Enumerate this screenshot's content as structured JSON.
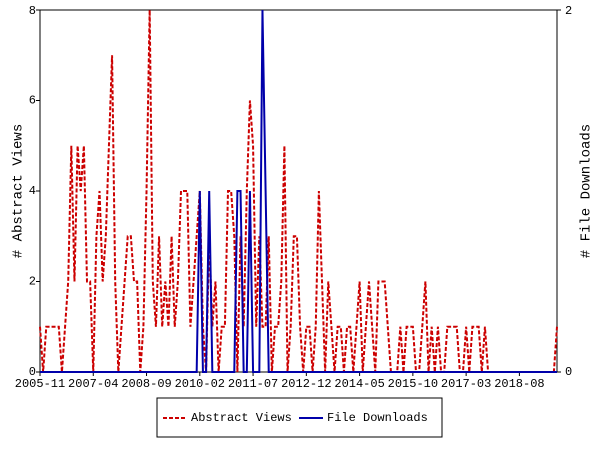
{
  "chart_data": {
    "type": "line",
    "y_label": "# Abstract Views",
    "y2_label": "# File Downloads",
    "categories": [
      "2005-11",
      null,
      null,
      null,
      null,
      null,
      null,
      null,
      null,
      null,
      null,
      null,
      null,
      null,
      null,
      null,
      null,
      "2007-04",
      null,
      null,
      null,
      null,
      null,
      null,
      null,
      null,
      null,
      null,
      null,
      null,
      null,
      null,
      null,
      null,
      "2008-09",
      null,
      null,
      null,
      null,
      null,
      null,
      null,
      null,
      null,
      null,
      null,
      null,
      null,
      null,
      null,
      null,
      "2010-02",
      null,
      null,
      null,
      null,
      null,
      null,
      null,
      null,
      null,
      null,
      null,
      null,
      null,
      null,
      null,
      null,
      "2011-07",
      null,
      null,
      null,
      null,
      null,
      null,
      null,
      null,
      null,
      null,
      null,
      null,
      null,
      null,
      null,
      null,
      "2012-12",
      null,
      null,
      null,
      null,
      null,
      null,
      null,
      null,
      null,
      null,
      null,
      null,
      null,
      null,
      null,
      null,
      "2014-05",
      null,
      null,
      null,
      null,
      null,
      null,
      null,
      null,
      null,
      null,
      null,
      null,
      null,
      null,
      null,
      null,
      "2015-10",
      null,
      null,
      null,
      null,
      null,
      null,
      null,
      null,
      null,
      null,
      null,
      null,
      null,
      null,
      null,
      null,
      "2017-03",
      null,
      null,
      null,
      null,
      null,
      null,
      null,
      null,
      null,
      null,
      null,
      null,
      null,
      null,
      null,
      null,
      "2018-08",
      null,
      null,
      null,
      null,
      null,
      null,
      null,
      null,
      null,
      null,
      null,
      null
    ],
    "series": [
      {
        "name": "Abstract Views",
        "color": "#cc0000",
        "values": [
          1,
          0,
          1,
          1,
          1,
          1,
          1,
          0,
          1,
          2,
          5,
          2,
          5,
          4,
          5,
          2,
          2,
          0,
          3,
          4,
          2,
          3,
          5,
          7,
          2,
          0,
          1,
          2,
          3,
          3,
          2,
          2,
          0,
          1,
          4,
          8,
          2,
          1,
          3,
          1,
          2,
          1,
          3,
          1,
          2,
          4,
          4,
          4,
          1,
          2,
          3,
          4,
          1,
          0,
          3,
          1,
          2,
          0,
          1,
          1,
          4,
          4,
          3,
          0,
          3,
          1,
          4,
          6,
          5,
          1,
          3,
          1,
          1,
          3,
          0,
          1,
          1,
          2,
          5,
          0,
          1,
          3,
          3,
          1,
          0,
          1,
          1,
          0,
          1,
          4,
          2,
          0,
          2,
          1,
          0,
          1,
          1,
          0,
          1,
          1,
          0,
          1,
          2,
          0,
          1,
          2,
          1,
          0,
          2,
          2,
          2,
          1,
          0,
          0,
          0,
          1,
          0,
          1,
          1,
          1,
          0,
          0,
          1,
          2,
          0,
          1,
          0,
          1,
          0,
          0,
          1,
          1,
          1,
          1,
          0,
          0,
          1,
          0,
          1,
          1,
          1,
          0,
          1,
          0,
          0,
          0,
          0,
          0,
          0,
          0,
          0,
          0,
          0,
          0,
          0,
          0,
          0,
          0,
          0,
          0,
          0,
          0,
          0,
          0,
          0,
          1
        ]
      },
      {
        "name": "File Downloads",
        "color": "#0000aa",
        "axis": "y2",
        "values": [
          0,
          0,
          0,
          0,
          0,
          0,
          0,
          0,
          0,
          0,
          0,
          0,
          0,
          0,
          0,
          0,
          0,
          0,
          0,
          0,
          0,
          0,
          0,
          0,
          0,
          0,
          0,
          0,
          0,
          0,
          0,
          0,
          0,
          0,
          0,
          0,
          0,
          0,
          0,
          0,
          0,
          0,
          0,
          0,
          0,
          0,
          0,
          0,
          0,
          0,
          0,
          1,
          0,
          0,
          1,
          0,
          0,
          0,
          0,
          0,
          0,
          0,
          0,
          1,
          1,
          0,
          0,
          1,
          0,
          0,
          0,
          2,
          1,
          0,
          0,
          0,
          0,
          0,
          0,
          0,
          0,
          0,
          0,
          0,
          0,
          0,
          0,
          0,
          0,
          0,
          0,
          0,
          0,
          0,
          0,
          0,
          0,
          0,
          0,
          0,
          0,
          0,
          0,
          0,
          0,
          0,
          0,
          0,
          0,
          0,
          0,
          0,
          0,
          0,
          0,
          0,
          0,
          0,
          0,
          0,
          0,
          0,
          0,
          0,
          0,
          0,
          0,
          0,
          0,
          0,
          0,
          0,
          0,
          0,
          0,
          0,
          0,
          0,
          0,
          0,
          0,
          0,
          0,
          0,
          0,
          0,
          0,
          0,
          0,
          0,
          0,
          0,
          0,
          0,
          0,
          0,
          0,
          0,
          0,
          0,
          0,
          0,
          0,
          0,
          0,
          0
        ]
      }
    ],
    "ylim": [
      0,
      8
    ],
    "yticks": [
      0,
      2,
      4,
      6,
      8
    ],
    "y2lim": [
      0,
      2
    ],
    "y2ticks": [
      0,
      2
    ],
    "legend": "bottom"
  }
}
